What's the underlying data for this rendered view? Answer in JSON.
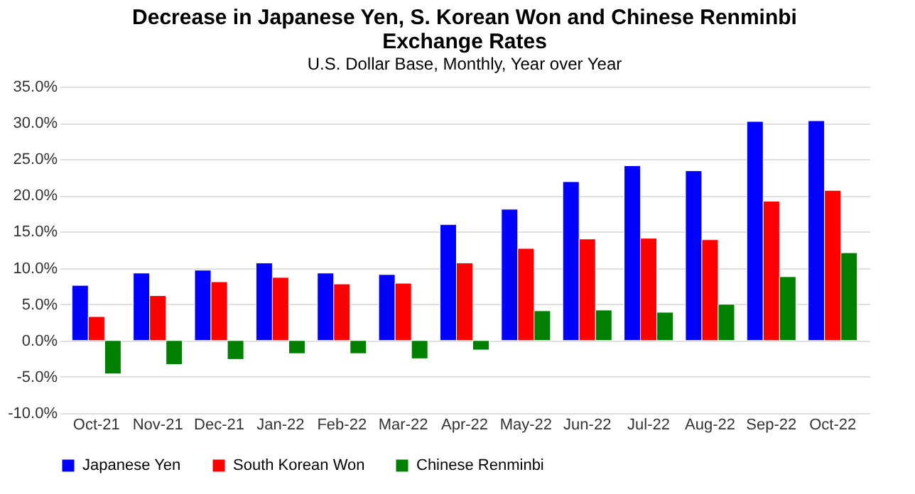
{
  "chart_data": {
    "type": "bar",
    "title": "Decrease in Japanese Yen, S. Korean Won and Chinese Renminbi Exchange Rates",
    "subtitle": "U.S. Dollar Base, Monthly, Year over Year",
    "categories": [
      "Oct-21",
      "Nov-21",
      "Dec-21",
      "Jan-22",
      "Feb-22",
      "Mar-22",
      "Apr-22",
      "May-22",
      "Jun-22",
      "Jul-22",
      "Aug-22",
      "Sep-22",
      "Oct-22"
    ],
    "series": [
      {
        "name": "Japanese Yen",
        "color": "#0000ff",
        "values": [
          7.6,
          9.3,
          9.7,
          10.7,
          9.3,
          9.1,
          16.0,
          18.1,
          21.9,
          24.1,
          23.4,
          30.2,
          30.3
        ]
      },
      {
        "name": "South Korean Won",
        "color": "#ff0000",
        "values": [
          3.3,
          6.2,
          8.1,
          8.7,
          7.8,
          7.9,
          10.7,
          12.7,
          14.0,
          14.1,
          13.9,
          19.2,
          20.7
        ]
      },
      {
        "name": "Chinese Renminbi",
        "color": "#008000",
        "values": [
          -4.6,
          -3.3,
          -2.6,
          -1.8,
          -1.8,
          -2.5,
          -1.3,
          4.1,
          4.2,
          3.9,
          5.0,
          8.8,
          12.1
        ]
      }
    ],
    "ylim": [
      -10,
      35
    ],
    "yticks": [
      {
        "value": -10,
        "label": "-10.0%"
      },
      {
        "value": -5,
        "label": "-5.0%"
      },
      {
        "value": 0,
        "label": "0.0%"
      },
      {
        "value": 5,
        "label": "5.0%"
      },
      {
        "value": 10,
        "label": "10.0%"
      },
      {
        "value": 15,
        "label": "15.0%"
      },
      {
        "value": 20,
        "label": "20.0%"
      },
      {
        "value": 25,
        "label": "25.0%"
      },
      {
        "value": 30,
        "label": "30.0%"
      },
      {
        "value": 35,
        "label": "35.0%"
      }
    ],
    "grid": "y",
    "legend": "bottom"
  }
}
